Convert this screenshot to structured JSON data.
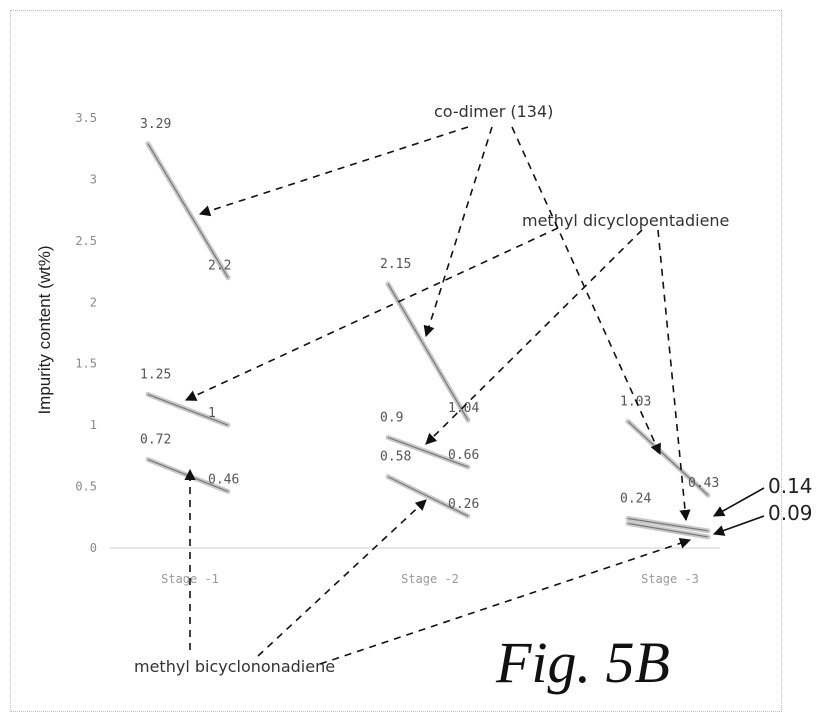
{
  "chart_data": {
    "type": "line",
    "ylabel": "Impurity content (wt%)",
    "yticks": [
      "0",
      "0.5",
      "1",
      "1.5",
      "2",
      "2.5",
      "3",
      "3.5"
    ],
    "ylim": [
      0,
      3.5
    ],
    "categories": [
      "Stage -1",
      "Stage -2",
      "Stage -3"
    ],
    "segments": [
      {
        "stage": 0,
        "start": 3.29,
        "end": 2.2,
        "start_label": "3.29",
        "end_label": "2.2"
      },
      {
        "stage": 0,
        "start": 1.25,
        "end": 1.0,
        "start_label": "1.25",
        "end_label": "1"
      },
      {
        "stage": 0,
        "start": 0.72,
        "end": 0.46,
        "start_label": "0.72",
        "end_label": "0.46"
      },
      {
        "stage": 1,
        "start": 2.15,
        "end": 1.04,
        "start_label": "2.15",
        "end_label": "1.04"
      },
      {
        "stage": 1,
        "start": 0.9,
        "end": 0.66,
        "start_label": "0.9",
        "end_label": "0.66"
      },
      {
        "stage": 1,
        "start": 0.58,
        "end": 0.26,
        "start_label": "0.58",
        "end_label": "0.26"
      },
      {
        "stage": 2,
        "start": 1.03,
        "end": 0.43,
        "start_label": "1.03",
        "end_label": "0.43"
      },
      {
        "stage": 2,
        "start": 0.24,
        "end": 0.14,
        "start_label": "0.24",
        "end_label": ""
      },
      {
        "stage": 2,
        "start": 0.2,
        "end": 0.09,
        "start_label": "",
        "end_label": ""
      }
    ],
    "callouts": [
      "0.14",
      "0.09"
    ],
    "annotations": {
      "co_dimer": "co-dimer (134)",
      "mdcpd": "methyl dicyclopentadiene",
      "mbcnd": "methyl bicyclononadiene"
    },
    "figure_label": "Fig. 5B",
    "grid": false
  }
}
